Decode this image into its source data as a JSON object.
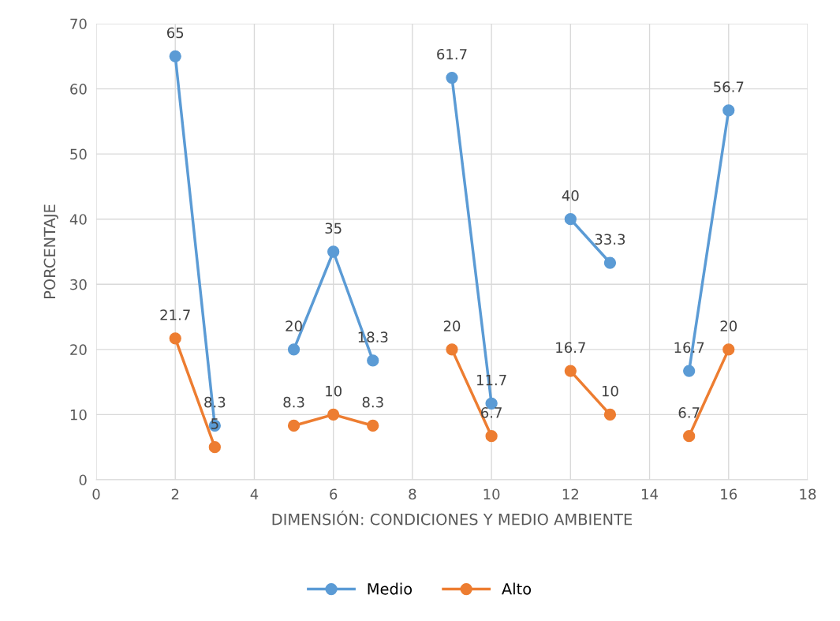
{
  "chart_data": {
    "type": "line",
    "xlabel": "DIMENSIÓN: CONDICIONES Y MEDIO AMBIENTE",
    "ylabel": "PORCENTAJE",
    "x": [
      2,
      3,
      4,
      5,
      6,
      7,
      8,
      9,
      10,
      11,
      12,
      13,
      14,
      15,
      16
    ],
    "series": [
      {
        "name": "Medio",
        "color": "#5b9bd5",
        "values": [
          65,
          8.3,
          null,
          20,
          35,
          18.3,
          null,
          61.7,
          11.7,
          null,
          40,
          33.3,
          null,
          16.7,
          56.7
        ]
      },
      {
        "name": "Alto",
        "color": "#ed7d31",
        "values": [
          21.7,
          5,
          null,
          8.3,
          10,
          8.3,
          null,
          20,
          6.7,
          null,
          16.7,
          10,
          null,
          6.7,
          20
        ]
      }
    ],
    "xlim": [
      0,
      18
    ],
    "xticks": [
      0,
      2,
      4,
      6,
      8,
      10,
      12,
      14,
      16,
      18
    ],
    "ylim": [
      0,
      70
    ],
    "yticks": [
      0,
      10,
      20,
      30,
      40,
      50,
      60,
      70
    ],
    "grid": true,
    "legend": "bottom",
    "marker": "circle",
    "line_style": "solid",
    "data_labels": true
  }
}
